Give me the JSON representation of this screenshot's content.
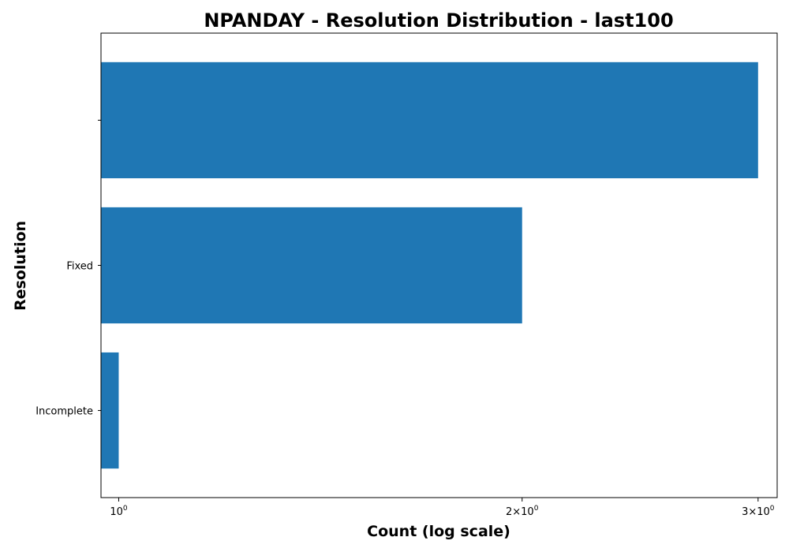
{
  "chart_data": {
    "type": "bar",
    "orientation": "horizontal",
    "title": "NPANDAY - Resolution Distribution - last100",
    "xlabel": "Count (log scale)",
    "ylabel": "Resolution",
    "x_scale": "log",
    "xlim": [
      0.97,
      3.1
    ],
    "x_ticks": [
      {
        "value": 1,
        "base": "10",
        "mult": "",
        "exp": "0"
      },
      {
        "value": 2,
        "base": "10",
        "mult": "2×",
        "exp": "0"
      },
      {
        "value": 3,
        "base": "10",
        "mult": "3×",
        "exp": "0"
      }
    ],
    "categories": [
      "",
      "Fixed",
      "Incomplete"
    ],
    "values": [
      3,
      2,
      1
    ],
    "bar_color": "#1f77b4",
    "grid": false,
    "legend": "none"
  }
}
